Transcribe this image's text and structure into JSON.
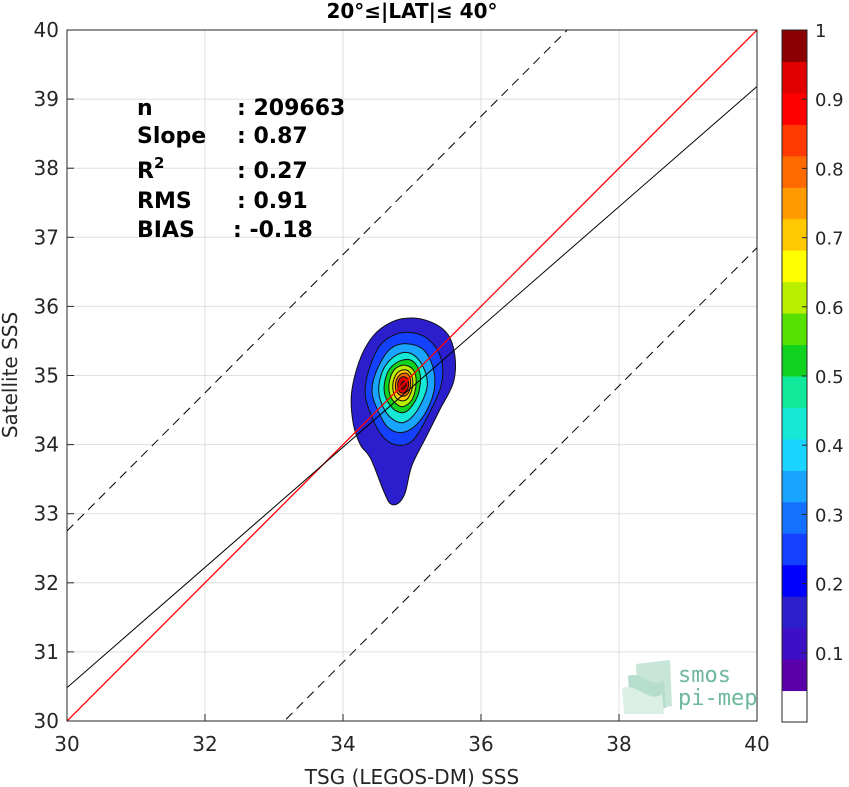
{
  "chart_data": {
    "type": "contour-density-scatter",
    "title": "20°≤|LAT|≤ 40°",
    "xlabel": "TSG (LEGOS-DM) SSS",
    "ylabel": "Satellite SSS",
    "xlim": [
      30,
      40
    ],
    "ylim": [
      30,
      40
    ],
    "xticks": [
      "30",
      "32",
      "34",
      "36",
      "38",
      "40"
    ],
    "yticks": [
      "30",
      "31",
      "32",
      "33",
      "34",
      "35",
      "36",
      "37",
      "38",
      "39",
      "40"
    ],
    "grid": true,
    "stats": [
      {
        "key": "n",
        "value": ": 209663"
      },
      {
        "key": "Slope",
        "value": ": 0.87"
      },
      {
        "key": "R",
        "sup": "2",
        "value": ": 0.27"
      },
      {
        "key": "RMS",
        "value": ": 0.91"
      },
      {
        "key": "BIAS",
        "value": ": -0.18"
      }
    ],
    "lines": {
      "identity": {
        "color": "#ff0000",
        "points": [
          [
            30,
            30
          ],
          [
            40,
            40
          ]
        ]
      },
      "regression": {
        "color": "#000000",
        "slope": 0.87,
        "intercept": 4.3832,
        "xrange": [
          30,
          40
        ]
      },
      "offset_upper": {
        "color": "#000000",
        "dash": true,
        "offset": 2.75,
        "xrange": [
          30,
          38.4
        ]
      },
      "offset_lower": {
        "color": "#000000",
        "dash": true,
        "offset": -3.15,
        "xrange": [
          32.1,
          40
        ]
      }
    },
    "density_peak": {
      "x": 34.88,
      "y": 34.85
    },
    "contours": [
      {
        "level": 0.05,
        "color": "#2a1ecd",
        "points": [
          [
            34.4,
            33.8
          ],
          [
            34.25,
            34.0
          ],
          [
            34.15,
            34.3
          ],
          [
            34.12,
            34.7
          ],
          [
            34.2,
            35.1
          ],
          [
            34.35,
            35.45
          ],
          [
            34.55,
            35.68
          ],
          [
            34.85,
            35.82
          ],
          [
            35.2,
            35.8
          ],
          [
            35.5,
            35.62
          ],
          [
            35.62,
            35.3
          ],
          [
            35.6,
            34.9
          ],
          [
            35.4,
            34.5
          ],
          [
            35.2,
            34.1
          ],
          [
            35.0,
            33.7
          ],
          [
            34.9,
            33.3
          ],
          [
            34.8,
            33.15
          ],
          [
            34.68,
            33.15
          ],
          [
            34.58,
            33.35
          ]
        ]
      },
      {
        "level": 0.2,
        "color": "#1440ff",
        "points": [
          [
            34.4,
            34.45
          ],
          [
            34.32,
            34.75
          ],
          [
            34.38,
            35.1
          ],
          [
            34.55,
            35.45
          ],
          [
            34.85,
            35.62
          ],
          [
            35.2,
            35.55
          ],
          [
            35.42,
            35.25
          ],
          [
            35.42,
            34.85
          ],
          [
            35.22,
            34.4
          ],
          [
            35.0,
            34.05
          ],
          [
            34.75,
            34.0
          ],
          [
            34.55,
            34.15
          ]
        ]
      },
      {
        "level": 0.3,
        "color": "#18a4ff",
        "points": [
          [
            34.48,
            34.55
          ],
          [
            34.42,
            34.8
          ],
          [
            34.5,
            35.1
          ],
          [
            34.68,
            35.38
          ],
          [
            34.92,
            35.46
          ],
          [
            35.18,
            35.36
          ],
          [
            35.32,
            35.05
          ],
          [
            35.3,
            34.7
          ],
          [
            35.12,
            34.35
          ],
          [
            34.88,
            34.18
          ],
          [
            34.65,
            34.25
          ]
        ]
      },
      {
        "level": 0.4,
        "color": "#16e8d6",
        "points": [
          [
            34.55,
            34.62
          ],
          [
            34.52,
            34.85
          ],
          [
            34.6,
            35.12
          ],
          [
            34.78,
            35.3
          ],
          [
            34.98,
            35.32
          ],
          [
            35.15,
            35.15
          ],
          [
            35.22,
            34.85
          ],
          [
            35.08,
            34.5
          ],
          [
            34.88,
            34.32
          ],
          [
            34.68,
            34.4
          ]
        ]
      },
      {
        "level": 0.5,
        "color": "#10d320",
        "points": [
          [
            34.62,
            34.68
          ],
          [
            34.6,
            34.88
          ],
          [
            34.68,
            35.1
          ],
          [
            34.85,
            35.22
          ],
          [
            35.02,
            35.2
          ],
          [
            35.12,
            35.0
          ],
          [
            35.08,
            34.7
          ],
          [
            34.92,
            34.48
          ],
          [
            34.75,
            34.5
          ]
        ]
      },
      {
        "level": 0.6,
        "color": "#b8f000",
        "points": [
          [
            34.68,
            34.72
          ],
          [
            34.67,
            34.9
          ],
          [
            34.74,
            35.08
          ],
          [
            34.88,
            35.15
          ],
          [
            35.02,
            35.08
          ],
          [
            35.06,
            34.88
          ],
          [
            35.0,
            34.65
          ],
          [
            34.87,
            34.55
          ],
          [
            34.76,
            34.6
          ]
        ]
      },
      {
        "level": 0.7,
        "color": "#ffc800",
        "points": [
          [
            34.73,
            34.76
          ],
          [
            34.73,
            34.92
          ],
          [
            34.8,
            35.05
          ],
          [
            34.92,
            35.08
          ],
          [
            35.0,
            34.98
          ],
          [
            35.0,
            34.8
          ],
          [
            34.92,
            34.65
          ],
          [
            34.8,
            34.65
          ]
        ]
      },
      {
        "level": 0.8,
        "color": "#ff6a00",
        "points": [
          [
            34.77,
            34.78
          ],
          [
            34.77,
            34.92
          ],
          [
            34.84,
            35.02
          ],
          [
            34.94,
            35.02
          ],
          [
            34.98,
            34.9
          ],
          [
            34.95,
            34.75
          ],
          [
            34.86,
            34.7
          ]
        ]
      },
      {
        "level": 0.9,
        "color": "#e00000",
        "points": [
          [
            34.8,
            34.8
          ],
          [
            34.8,
            34.92
          ],
          [
            34.86,
            34.98
          ],
          [
            34.93,
            34.96
          ],
          [
            34.95,
            34.85
          ],
          [
            34.9,
            34.76
          ],
          [
            34.84,
            34.75
          ]
        ]
      },
      {
        "level": 1.0,
        "color": "#8b0000",
        "points": [
          [
            34.84,
            34.83
          ],
          [
            34.85,
            34.9
          ],
          [
            34.9,
            34.91
          ],
          [
            34.91,
            34.85
          ],
          [
            34.87,
            34.8
          ]
        ]
      }
    ],
    "colorbar": {
      "ticks": [
        "0.1",
        "0.2",
        "0.3",
        "0.4",
        "0.5",
        "0.6",
        "0.7",
        "0.8",
        "0.9",
        "1"
      ],
      "colors": [
        "#ffffff",
        "#5a00aa",
        "#3d10c8",
        "#2a1ecd",
        "#0000ff",
        "#1440ff",
        "#1470ff",
        "#18a4ff",
        "#18d4ff",
        "#16e8d6",
        "#10e89a",
        "#10d320",
        "#58e000",
        "#b8f000",
        "#ffff00",
        "#ffc800",
        "#ff9a00",
        "#ff6a00",
        "#ff3a00",
        "#ff0000",
        "#e00000",
        "#8b0000"
      ]
    }
  },
  "logo": {
    "line1": "smos",
    "line2": "pi-mep"
  }
}
